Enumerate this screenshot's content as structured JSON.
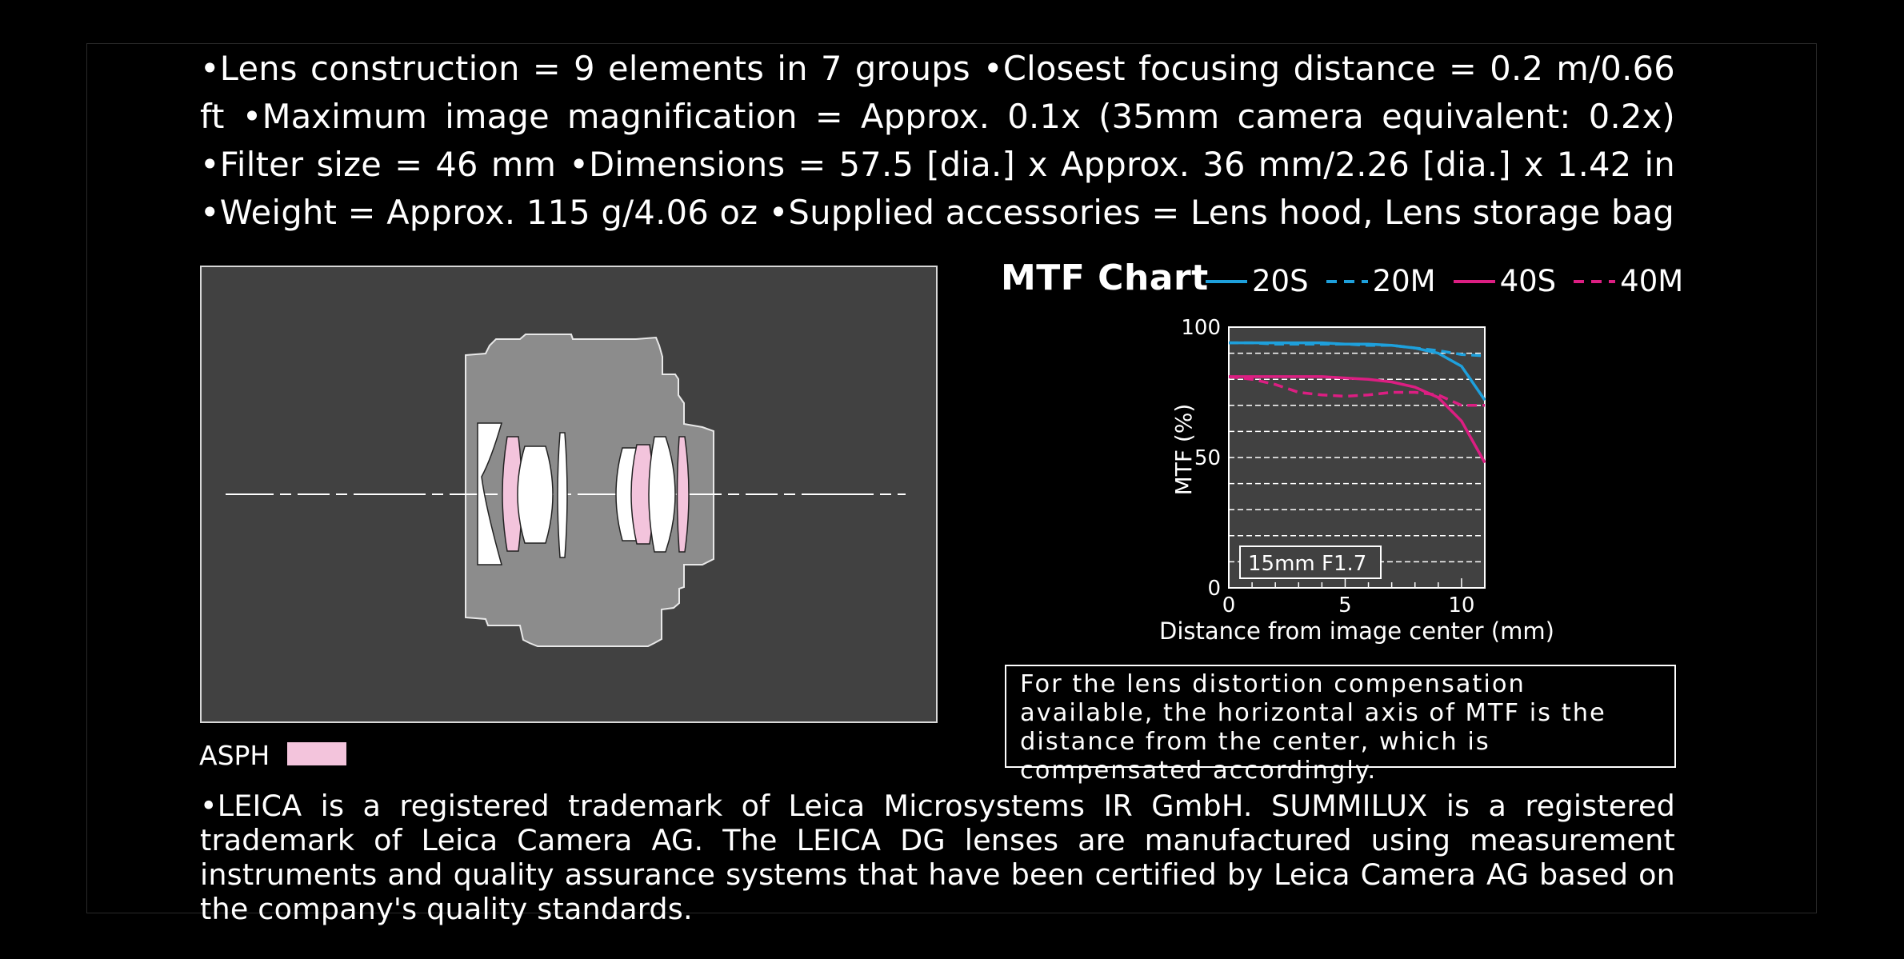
{
  "specs": "•Lens construction = 9 elements in 7 groups •Closest focusing distance = 0.2 m/0.66 ft •Maximum image magnification = Approx. 0.1x (35mm camera equivalent: 0.2x) •Filter size = 46 mm •Dimensions = 57.5 [dia.] x Approx. 36 mm/2.26 [dia.] x 1.42 in •Weight = Approx. 115 g/4.06 oz •Supplied accessories = Lens hood, Lens storage bag",
  "asph_label": "ASPH",
  "colors": {
    "background": "#000000",
    "panel": "#414141",
    "lens_body": "#8c8c8c",
    "asph": "#f3c4dc",
    "blue": "#1ea0dc",
    "magenta": "#dc1e82"
  },
  "chart_data": {
    "type": "line",
    "title": "MTF Chart",
    "xlabel": "Distance from image center (mm)",
    "ylabel": "MTF (%)",
    "xlim": [
      0,
      11
    ],
    "ylim": [
      0,
      100
    ],
    "xticks": [
      0,
      5,
      10
    ],
    "yticks": [
      0,
      50,
      100
    ],
    "grid": "dashed horizontal",
    "annotation": "15mm F1.7",
    "x": [
      0,
      1,
      2,
      3,
      4,
      5,
      6,
      7,
      8,
      9,
      10,
      11
    ],
    "series": [
      {
        "name": "20S",
        "color": "#1ea0dc",
        "style": "solid",
        "values": [
          94,
          94,
          94,
          94,
          94,
          93.5,
          93.5,
          93,
          92,
          90,
          85,
          72
        ]
      },
      {
        "name": "20M",
        "color": "#1ea0dc",
        "style": "dashed",
        "values": [
          94,
          94,
          93.5,
          93.5,
          93.5,
          93.5,
          93,
          93,
          92,
          91,
          89.5,
          89
        ]
      },
      {
        "name": "40S",
        "color": "#dc1e82",
        "style": "solid",
        "values": [
          81,
          81,
          81,
          81,
          81,
          80.5,
          80,
          79,
          77,
          73,
          64,
          48
        ]
      },
      {
        "name": "40M",
        "color": "#dc1e82",
        "style": "dashed",
        "values": [
          81,
          80,
          78,
          75,
          74,
          73.5,
          74,
          75,
          75,
          74,
          70,
          70
        ]
      }
    ]
  },
  "note": "For the lens distortion compensation available, the horizontal axis of MTF is the distance from the center, which is compensated accordingly.",
  "footer": "•LEICA is a registered trademark of Leica Microsystems IR GmbH. SUMMILUX is a registered trademark of Leica Camera AG. The LEICA DG lenses are manufactured using measurement instruments and quality assurance systems that have been certified by Leica Camera AG based on the company's quality standards."
}
